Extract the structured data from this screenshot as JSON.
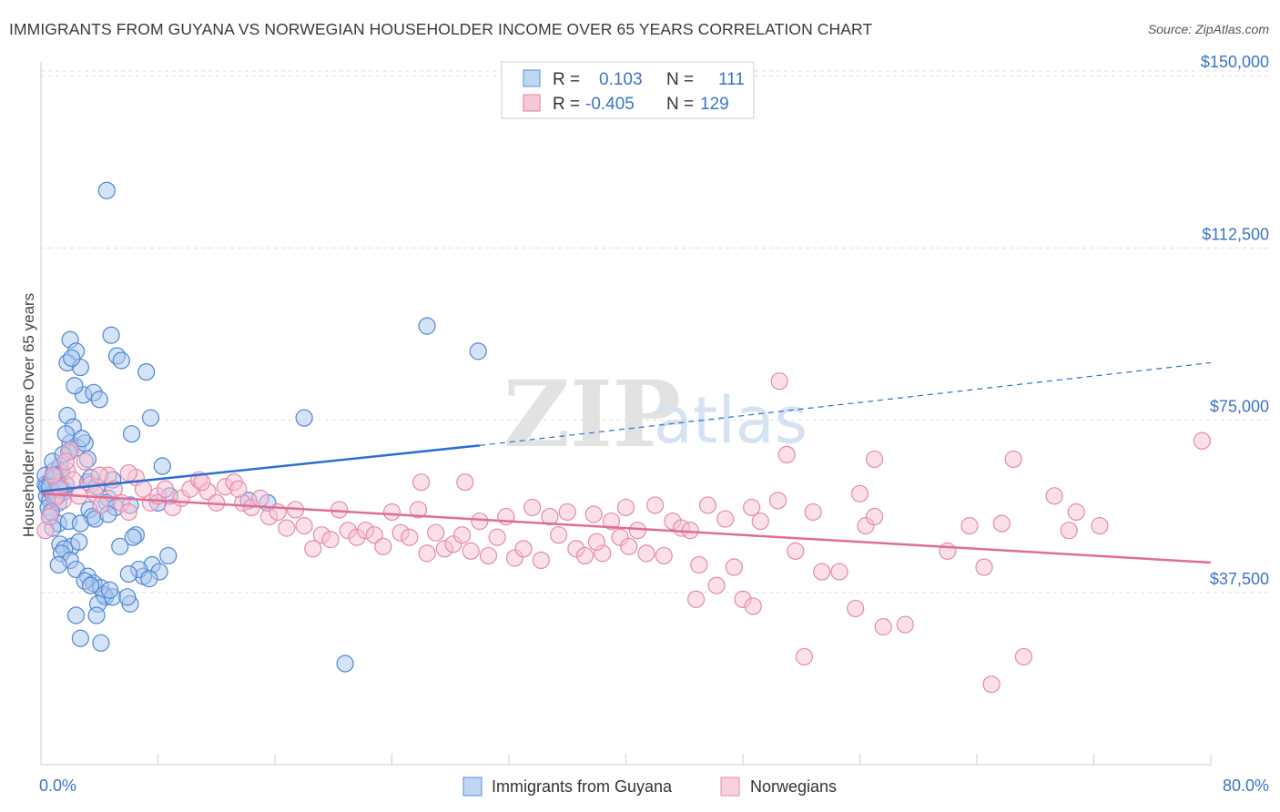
{
  "header": {
    "title": "IMMIGRANTS FROM GUYANA VS NORWEGIAN HOUSEHOLDER INCOME OVER 65 YEARS CORRELATION CHART",
    "source": "Source: ZipAtlas.com"
  },
  "watermark": {
    "zip": "ZIP",
    "atlas": "atlas"
  },
  "legend": {
    "r_label": "R =",
    "n_label": "N =",
    "rows": [
      {
        "r": "0.103",
        "n": "111",
        "fill": "#a9c8ee",
        "stroke": "#5b8fd6"
      },
      {
        "r": "-0.405",
        "n": "129",
        "fill": "#f4b6cb",
        "stroke": "#e07ba0"
      }
    ]
  },
  "colors": {
    "blue_fill": "#a9c8ee",
    "blue_stroke": "#4f86d3",
    "blue_line": "#2e6fcf",
    "pink_fill": "#f7c1d3",
    "pink_stroke": "#e58aab",
    "pink_line": "#e06c97",
    "tick_text": "#3a74c8",
    "grid": "#dddddd"
  },
  "chart_data": {
    "type": "scatter",
    "title": "IMMIGRANTS FROM GUYANA VS NORWEGIAN HOUSEHOLDER INCOME OVER 65 YEARS CORRELATION CHART",
    "xlabel": "",
    "ylabel": "Householder Income Over 65 years",
    "xlim": [
      0,
      80
    ],
    "ylim": [
      0,
      153000
    ],
    "x_tick_labels": [
      "0.0%",
      "80.0%"
    ],
    "y_ticks": [
      37500,
      75000,
      112500,
      150000
    ],
    "y_tick_labels": [
      "$37,500",
      "$75,000",
      "$112,500",
      "$150,000"
    ],
    "grid": true,
    "legend_position": "top-center",
    "series": [
      {
        "name": "Immigrants from Guyana",
        "r": 0.103,
        "n": 111,
        "trend": {
          "x0": 0,
          "y0": 59500,
          "x1": 30,
          "y1": 69500,
          "dash_to_x": 80,
          "dash_to_y": 87500
        },
        "points": [
          [
            0.3,
            61000
          ],
          [
            0.4,
            58500
          ],
          [
            0.5,
            60000
          ],
          [
            0.6,
            57500
          ],
          [
            0.3,
            63000
          ],
          [
            0.7,
            62000
          ],
          [
            0.8,
            59000
          ],
          [
            0.5,
            56000
          ],
          [
            0.9,
            64000
          ],
          [
            0.4,
            60500
          ],
          [
            1.0,
            58000
          ],
          [
            1.1,
            61500
          ],
          [
            0.6,
            54000
          ],
          [
            1.3,
            65000
          ],
          [
            1.2,
            57000
          ],
          [
            1.5,
            60000
          ],
          [
            0.8,
            66000
          ],
          [
            1.6,
            59500
          ],
          [
            1.0,
            62500
          ],
          [
            1.4,
            63500
          ],
          [
            2.0,
            70000
          ],
          [
            1.8,
            76000
          ],
          [
            2.2,
            73500
          ],
          [
            1.7,
            72000
          ],
          [
            2.5,
            69000
          ],
          [
            1.9,
            68000
          ],
          [
            3.0,
            70000
          ],
          [
            2.8,
            71000
          ],
          [
            1.5,
            67500
          ],
          [
            3.2,
            66500
          ],
          [
            2.0,
            92500
          ],
          [
            2.4,
            90000
          ],
          [
            1.8,
            87500
          ],
          [
            2.7,
            86500
          ],
          [
            2.1,
            88500
          ],
          [
            4.8,
            93500
          ],
          [
            5.2,
            89000
          ],
          [
            5.5,
            88000
          ],
          [
            7.2,
            85500
          ],
          [
            4.5,
            125000
          ],
          [
            2.9,
            80500
          ],
          [
            3.6,
            81000
          ],
          [
            4.0,
            79500
          ],
          [
            2.3,
            82500
          ],
          [
            7.5,
            75500
          ],
          [
            6.2,
            72000
          ],
          [
            3.2,
            61500
          ],
          [
            3.4,
            62500
          ],
          [
            3.8,
            60500
          ],
          [
            4.9,
            62000
          ],
          [
            4.6,
            58000
          ],
          [
            6.1,
            56500
          ],
          [
            4.5,
            57000
          ],
          [
            5.1,
            56000
          ],
          [
            8.3,
            65000
          ],
          [
            8.0,
            57000
          ],
          [
            8.8,
            58500
          ],
          [
            3.3,
            55500
          ],
          [
            3.5,
            54000
          ],
          [
            1.2,
            52500
          ],
          [
            1.9,
            53000
          ],
          [
            2.7,
            52500
          ],
          [
            3.7,
            53500
          ],
          [
            4.6,
            54500
          ],
          [
            1.3,
            48000
          ],
          [
            2.1,
            47500
          ],
          [
            1.6,
            47000
          ],
          [
            2.6,
            48500
          ],
          [
            1.4,
            46000
          ],
          [
            2.0,
            44500
          ],
          [
            5.4,
            47500
          ],
          [
            6.5,
            50000
          ],
          [
            6.3,
            49500
          ],
          [
            1.2,
            43500
          ],
          [
            2.4,
            42500
          ],
          [
            3.2,
            41000
          ],
          [
            7.0,
            41000
          ],
          [
            7.6,
            43500
          ],
          [
            8.1,
            42000
          ],
          [
            8.7,
            45500
          ],
          [
            3.6,
            39500
          ],
          [
            4.1,
            38500
          ],
          [
            3.0,
            40000
          ],
          [
            4.4,
            36500
          ],
          [
            4.3,
            37000
          ],
          [
            4.9,
            36500
          ],
          [
            3.9,
            35000
          ],
          [
            6.1,
            35000
          ],
          [
            4.7,
            38000
          ],
          [
            3.4,
            39000
          ],
          [
            2.4,
            32500
          ],
          [
            3.8,
            32500
          ],
          [
            5.9,
            36500
          ],
          [
            2.7,
            27500
          ],
          [
            4.1,
            26500
          ],
          [
            6.7,
            42500
          ],
          [
            7.4,
            40500
          ],
          [
            6.0,
            41500
          ],
          [
            0.7,
            55000
          ],
          [
            0.8,
            51500
          ],
          [
            14.2,
            57500
          ],
          [
            15.5,
            57000
          ],
          [
            18.0,
            75500
          ],
          [
            26.4,
            95500
          ],
          [
            29.9,
            90000
          ],
          [
            20.8,
            22000
          ],
          [
            0.9,
            63000
          ],
          [
            1.1,
            58500
          ],
          [
            0.6,
            60500
          ],
          [
            1.7,
            61000
          ],
          [
            1.3,
            60000
          ]
        ]
      },
      {
        "name": "Norwegians",
        "r": -0.405,
        "n": 129,
        "trend": {
          "x0": 0,
          "y0": 59000,
          "x1": 80,
          "y1": 44000
        },
        "points": [
          [
            0.3,
            51000
          ],
          [
            0.6,
            54000
          ],
          [
            0.9,
            58000
          ],
          [
            1.2,
            60500
          ],
          [
            1.5,
            57500
          ],
          [
            1.8,
            64000
          ],
          [
            2.2,
            62000
          ],
          [
            2.6,
            58500
          ],
          [
            3.0,
            66000
          ],
          [
            3.4,
            61000
          ],
          [
            3.7,
            59000
          ],
          [
            4.1,
            56500
          ],
          [
            4.6,
            63000
          ],
          [
            5.0,
            60000
          ],
          [
            5.5,
            57000
          ],
          [
            6.0,
            55000
          ],
          [
            6.5,
            62500
          ],
          [
            7.0,
            60000
          ],
          [
            7.5,
            57000
          ],
          [
            8.0,
            58500
          ],
          [
            8.5,
            60000
          ],
          [
            9.0,
            56000
          ],
          [
            9.6,
            58000
          ],
          [
            10.2,
            60000
          ],
          [
            10.8,
            62000
          ],
          [
            11.4,
            59500
          ],
          [
            12.0,
            57000
          ],
          [
            12.6,
            60500
          ],
          [
            13.2,
            61500
          ],
          [
            13.8,
            57000
          ],
          [
            14.4,
            56000
          ],
          [
            15.0,
            58000
          ],
          [
            15.6,
            54000
          ],
          [
            16.2,
            55000
          ],
          [
            16.8,
            51500
          ],
          [
            17.4,
            55500
          ],
          [
            18.0,
            52000
          ],
          [
            18.6,
            47000
          ],
          [
            19.2,
            50000
          ],
          [
            19.8,
            49000
          ],
          [
            20.4,
            55500
          ],
          [
            21.0,
            51000
          ],
          [
            21.6,
            49500
          ],
          [
            22.2,
            51000
          ],
          [
            22.8,
            50000
          ],
          [
            23.4,
            47500
          ],
          [
            24.0,
            55000
          ],
          [
            24.6,
            50500
          ],
          [
            25.2,
            49500
          ],
          [
            25.8,
            55500
          ],
          [
            26.4,
            46000
          ],
          [
            27.0,
            50500
          ],
          [
            27.6,
            47000
          ],
          [
            28.2,
            48000
          ],
          [
            28.8,
            50000
          ],
          [
            29.4,
            46500
          ],
          [
            30.0,
            53000
          ],
          [
            30.6,
            45500
          ],
          [
            31.2,
            49500
          ],
          [
            31.8,
            54000
          ],
          [
            32.4,
            45000
          ],
          [
            33.0,
            47000
          ],
          [
            33.6,
            56000
          ],
          [
            34.2,
            44500
          ],
          [
            34.8,
            54000
          ],
          [
            35.4,
            50000
          ],
          [
            36.0,
            55000
          ],
          [
            36.6,
            47000
          ],
          [
            37.2,
            45500
          ],
          [
            37.8,
            54500
          ],
          [
            38.4,
            46000
          ],
          [
            39.0,
            53000
          ],
          [
            39.6,
            49500
          ],
          [
            40.2,
            47500
          ],
          [
            40.8,
            51000
          ],
          [
            41.4,
            46000
          ],
          [
            42.0,
            56500
          ],
          [
            42.6,
            45500
          ],
          [
            43.2,
            53000
          ],
          [
            43.8,
            51500
          ],
          [
            44.4,
            51000
          ],
          [
            45.0,
            43500
          ],
          [
            45.6,
            56500
          ],
          [
            46.2,
            39000
          ],
          [
            46.8,
            53500
          ],
          [
            47.4,
            43000
          ],
          [
            48.0,
            36000
          ],
          [
            48.6,
            56000
          ],
          [
            49.2,
            53000
          ],
          [
            50.4,
            57500
          ],
          [
            51.0,
            67500
          ],
          [
            51.6,
            46500
          ],
          [
            52.2,
            23500
          ],
          [
            52.8,
            55000
          ],
          [
            53.4,
            42000
          ],
          [
            54.6,
            42000
          ],
          [
            56.4,
            52000
          ],
          [
            57.0,
            54000
          ],
          [
            57.6,
            30000
          ],
          [
            59.1,
            30500
          ],
          [
            63.5,
            52000
          ],
          [
            64.5,
            43000
          ],
          [
            65.7,
            52500
          ],
          [
            67.2,
            23500
          ],
          [
            69.3,
            58500
          ],
          [
            70.3,
            51000
          ],
          [
            70.8,
            55000
          ],
          [
            72.4,
            52000
          ],
          [
            79.4,
            70500
          ],
          [
            44.8,
            36000
          ],
          [
            48.7,
            34500
          ],
          [
            55.7,
            34000
          ],
          [
            65.0,
            17500
          ],
          [
            50.5,
            83500
          ],
          [
            66.5,
            66500
          ],
          [
            57.0,
            66500
          ],
          [
            13.5,
            60000
          ],
          [
            11.0,
            61500
          ],
          [
            6.0,
            63500
          ],
          [
            4.0,
            63000
          ],
          [
            2.0,
            68500
          ],
          [
            1.7,
            66000
          ],
          [
            0.8,
            63000
          ],
          [
            29.0,
            61500
          ],
          [
            40.0,
            56000
          ],
          [
            38.0,
            48500
          ],
          [
            62.0,
            46500
          ],
          [
            56.0,
            59000
          ],
          [
            26.0,
            61500
          ]
        ]
      }
    ]
  },
  "bottom_legend": [
    {
      "label": "Immigrants from Guyana",
      "fill": "#a9c8ee",
      "stroke": "#5b8fd6"
    },
    {
      "label": "Norwegians",
      "fill": "#f7c1d3",
      "stroke": "#e58aab"
    }
  ]
}
